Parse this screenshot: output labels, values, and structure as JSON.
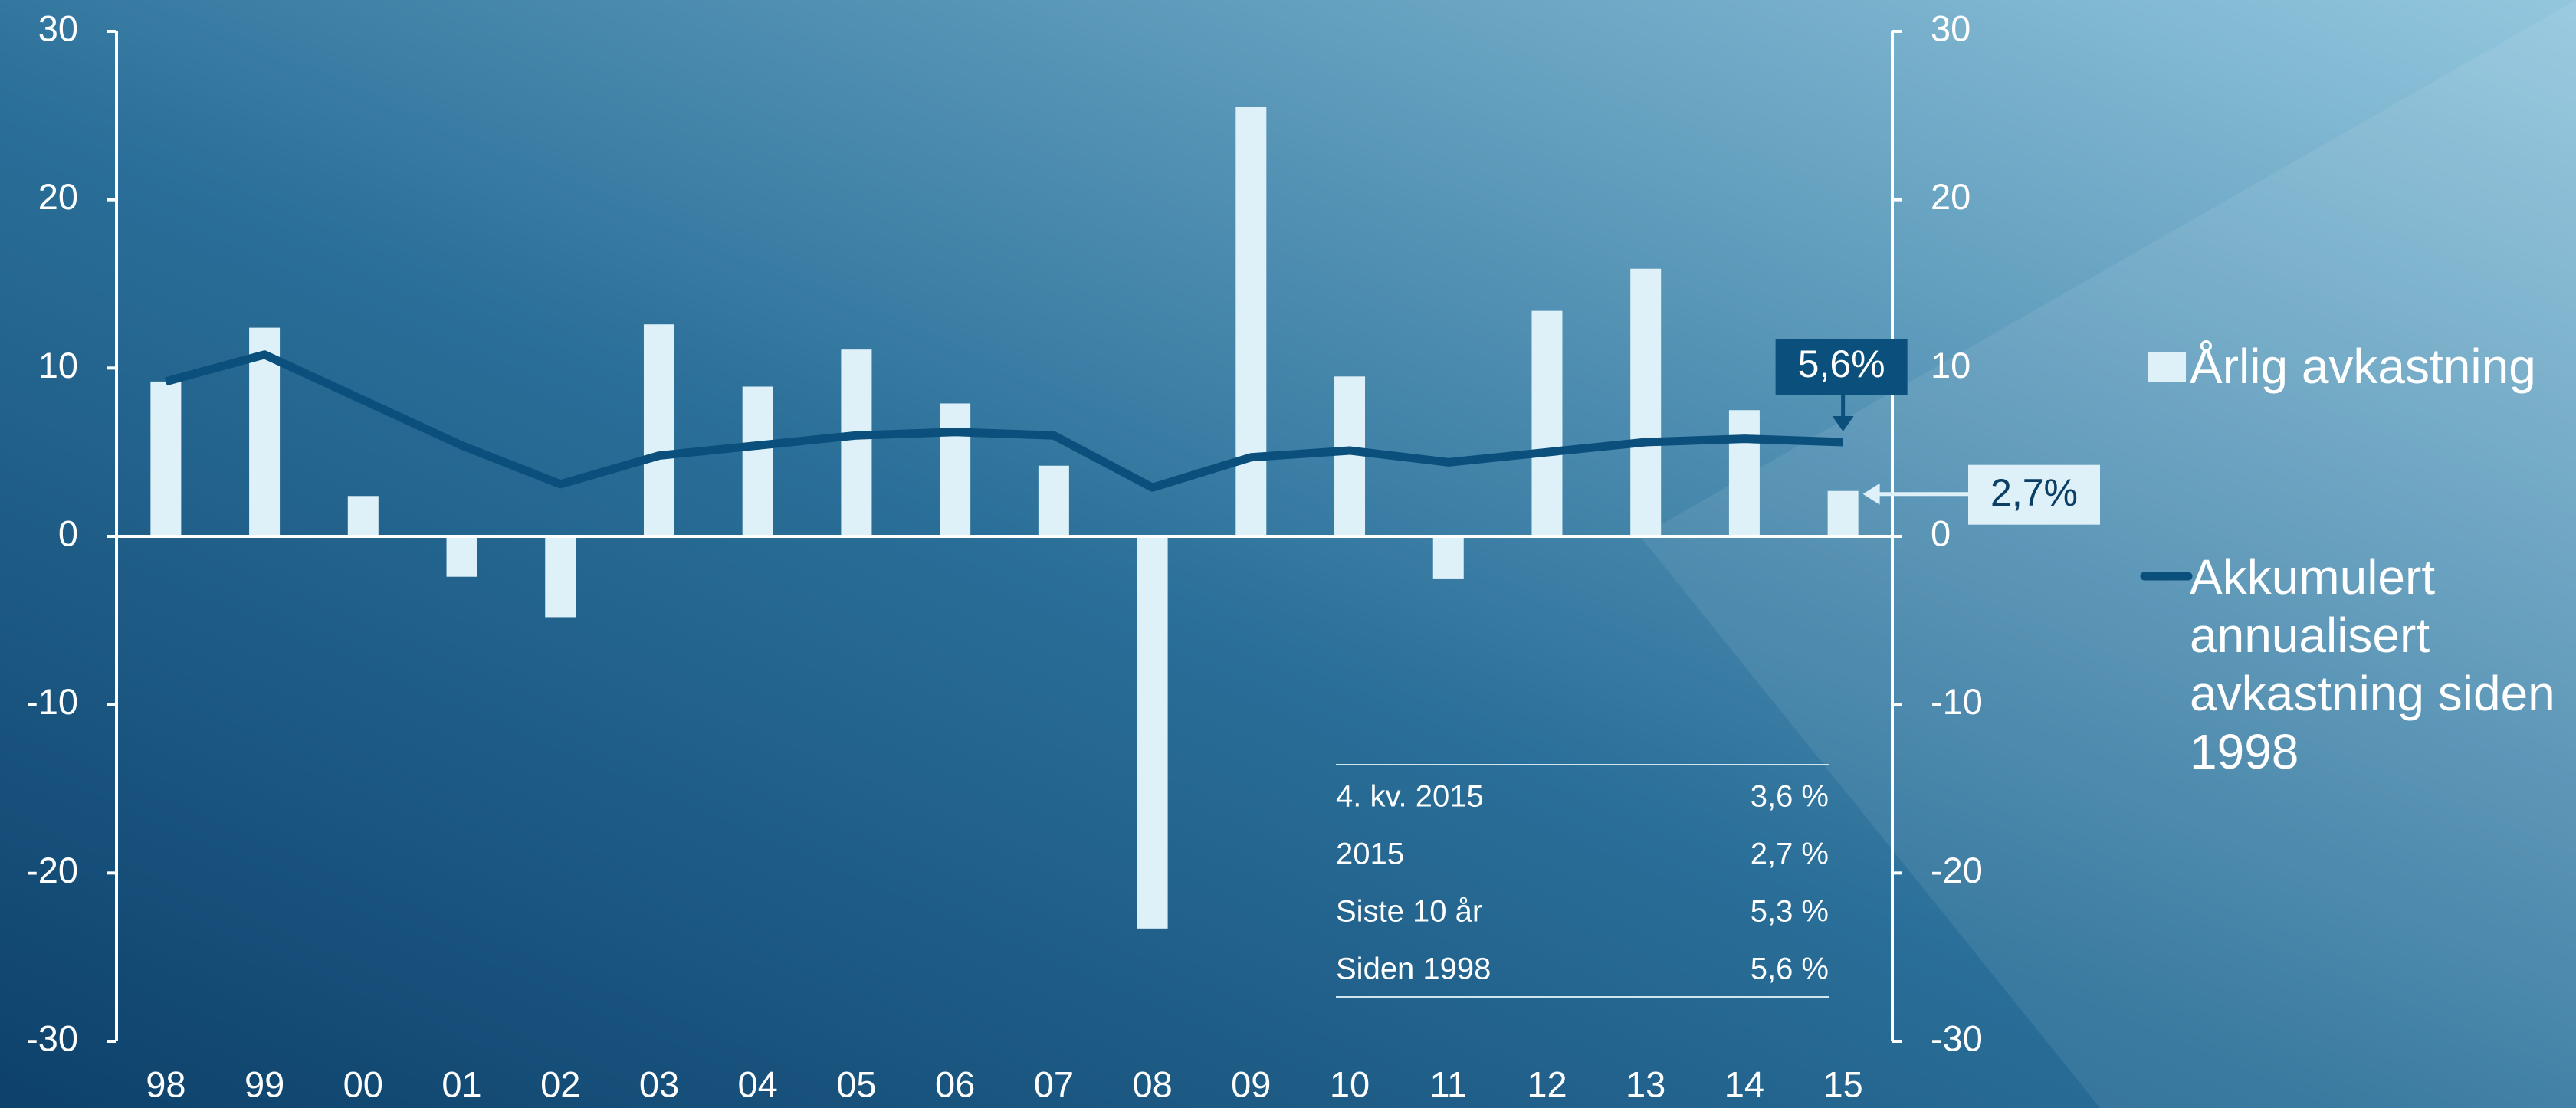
{
  "chart_data": {
    "type": "bar_line",
    "categories": [
      "98",
      "99",
      "00",
      "01",
      "02",
      "03",
      "04",
      "05",
      "06",
      "07",
      "08",
      "09",
      "10",
      "11",
      "12",
      "13",
      "14",
      "15"
    ],
    "series": [
      {
        "name": "Årlig avkastning",
        "color": "#dff1f8",
        "type": "bar",
        "values": [
          9.2,
          12.4,
          2.4,
          -2.4,
          -4.8,
          12.6,
          8.9,
          11.1,
          7.9,
          4.2,
          -23.3,
          25.5,
          9.5,
          -2.5,
          13.4,
          15.9,
          7.5,
          2.7
        ]
      },
      {
        "name": "Akkumulert annualisert avkastning siden 1998",
        "color": "#0b4f7c",
        "type": "line",
        "values": [
          9.2,
          10.8,
          8.1,
          5.4,
          3.1,
          4.8,
          5.4,
          6.0,
          6.2,
          6.0,
          2.9,
          4.7,
          5.1,
          4.4,
          5.0,
          5.6,
          5.8,
          5.6
        ]
      }
    ],
    "ylim": [
      -30,
      30
    ],
    "yticks": [
      -30,
      -20,
      -10,
      0,
      10,
      20,
      30
    ],
    "y2lim": [
      -30,
      30
    ],
    "y2ticks": [
      -30,
      -20,
      -10,
      0,
      10,
      20,
      30
    ],
    "annotations": [
      "5,6%",
      "2,7%"
    ],
    "table": {
      "rows": [
        [
          "4. kv. 2015",
          "3,6 %"
        ],
        [
          "2015",
          "2,7 %"
        ],
        [
          "Siste 10 år",
          "5,3 %"
        ],
        [
          "Siden 1998",
          "5,6 %"
        ]
      ]
    },
    "legend": "right"
  }
}
